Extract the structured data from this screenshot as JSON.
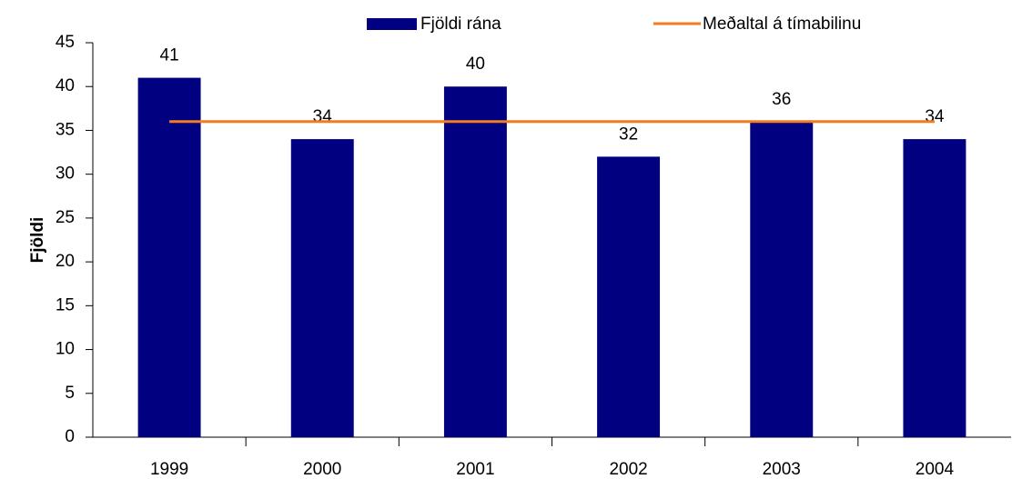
{
  "chart_data": {
    "type": "bar",
    "categories": [
      "1999",
      "2000",
      "2001",
      "2002",
      "2003",
      "2004"
    ],
    "series": [
      {
        "name": "Fjöldi rána",
        "type": "bar",
        "color": "#000080",
        "values": [
          41,
          34,
          40,
          32,
          36,
          34
        ]
      },
      {
        "name": "Meðaltal á tímabilinu",
        "type": "line",
        "color": "#f47b20",
        "values": [
          36,
          36,
          36,
          36,
          36,
          36
        ]
      }
    ],
    "ylabel": "Fjöldi",
    "ylim": [
      0,
      45
    ],
    "yticks": [
      0,
      5,
      10,
      15,
      20,
      25,
      30,
      35,
      40,
      45
    ],
    "grid": false,
    "legend": "top"
  }
}
